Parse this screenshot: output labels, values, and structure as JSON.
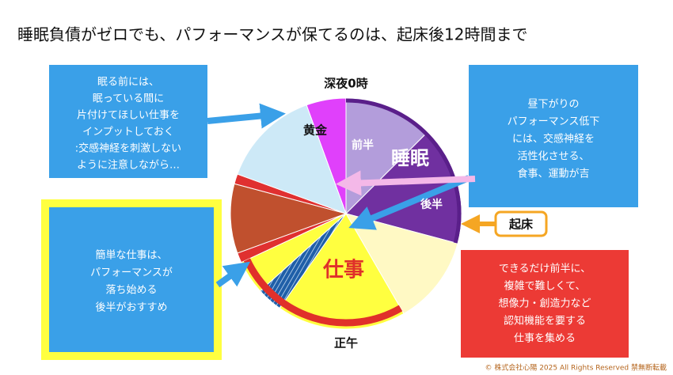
{
  "title": "睡眠負債がゼロでも、パフォーマンスが保てるのは、起床後12時間まで",
  "clock": {
    "top": "深夜0時",
    "bottom": "正午",
    "golden": "黄金",
    "first_half": "前半",
    "sleep": "睡眠",
    "second_half": "後半",
    "work": "仕事"
  },
  "wake_label": "起床",
  "callouts": {
    "top_left": [
      "眠る前には、",
      "眠っている間に",
      "片付けてほしい仕事を",
      "インプットしておく",
      ":交感神経を刺激しない",
      "ように注意しながら…"
    ],
    "top_right": [
      "昼下がりの",
      "パフォーマンス低下",
      "には、交感神経を",
      "活性化させる、",
      "食事、運動が吉"
    ],
    "bottom_left": [
      "簡単な仕事は、",
      "パフォーマンスが",
      "落ち始める",
      "後半がおすすめ"
    ],
    "bottom_right": [
      "できるだけ前半に、",
      "複雑で難しくて、",
      "想像力・創造力など",
      "認知機能を要する",
      "仕事を集める"
    ]
  },
  "copyright": "© 株式会社心陽 2025 All Rights Reserved 禁無断転載"
}
